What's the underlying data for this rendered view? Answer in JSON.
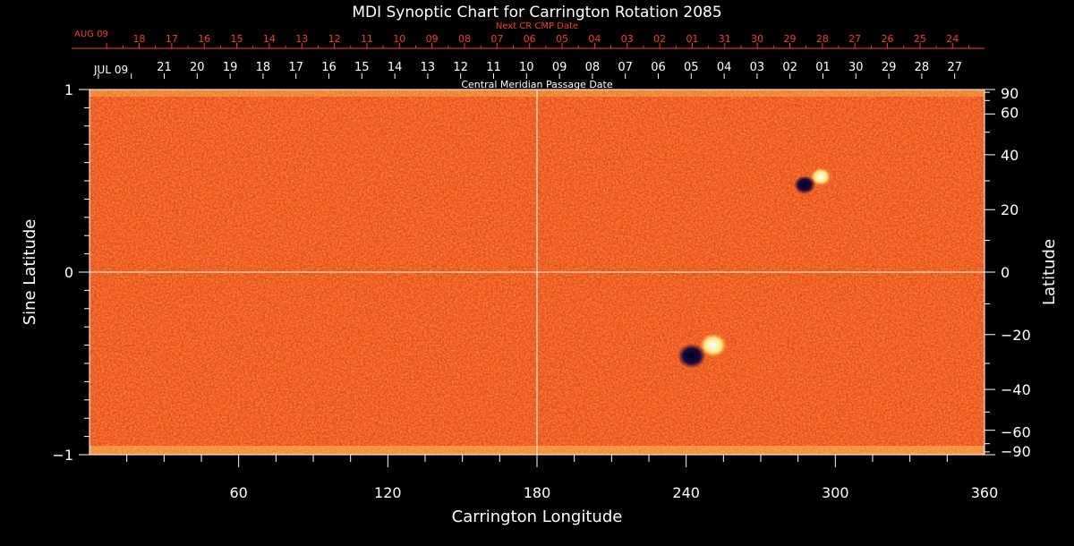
{
  "chart_data": {
    "type": "heatmap",
    "title": "MDI Synoptic Chart for Carrington Rotation 2085",
    "xlabel": "Carrington Longitude",
    "ylabel_left": "Sine Latitude",
    "ylabel_right": "Latitude",
    "xlim": [
      0,
      360
    ],
    "ylim": [
      -1,
      1
    ],
    "x_ticks": [
      60,
      120,
      180,
      240,
      300,
      360
    ],
    "y_ticks_left": [
      -1,
      0,
      1
    ],
    "y_ticks_right": [
      -90,
      -60,
      -40,
      -20,
      0,
      20,
      40,
      60,
      90
    ],
    "tick_labels": {
      "x": [
        "60",
        "120",
        "180",
        "240",
        "300",
        "360"
      ],
      "y_left": [
        "−1",
        "0",
        "1"
      ],
      "y_right": [
        "−90",
        "−60",
        "−40",
        "−20",
        "0",
        "20",
        "40",
        "60",
        "90"
      ]
    },
    "grid_lines": {
      "longitude": 180,
      "sine_latitude": 0
    },
    "next_cr_axis": {
      "label": "Next CR CMP Date",
      "month_label": "AUG 09",
      "days": [
        "18",
        "17",
        "16",
        "15",
        "14",
        "13",
        "12",
        "11",
        "10",
        "09",
        "08",
        "07",
        "06",
        "05",
        "04",
        "03",
        "02",
        "01",
        "31",
        "30",
        "29",
        "28",
        "27",
        "26",
        "25",
        "24"
      ],
      "color": "#ff3c1e"
    },
    "cmp_axis": {
      "label": "Central Meridian Passage Date",
      "month_label": "JUL 09",
      "days": [
        "21",
        "20",
        "19",
        "18",
        "17",
        "16",
        "15",
        "14",
        "13",
        "12",
        "11",
        "10",
        "09",
        "08",
        "07",
        "06",
        "05",
        "04",
        "03",
        "02",
        "01",
        "30",
        "29",
        "28",
        "27"
      ],
      "color": "#ffffff"
    },
    "features": [
      {
        "type": "active region",
        "longitude": 248,
        "sine_latitude": -0.43,
        "polarity": "bipolar"
      },
      {
        "type": "active region",
        "longitude": 292,
        "sine_latitude": 0.5,
        "polarity": "bipolar"
      }
    ],
    "colors": {
      "background": "#000000",
      "field_base": "#ff5a14",
      "positive": "#ffffff",
      "negative": "#000040",
      "axis": "#ffffff"
    }
  }
}
